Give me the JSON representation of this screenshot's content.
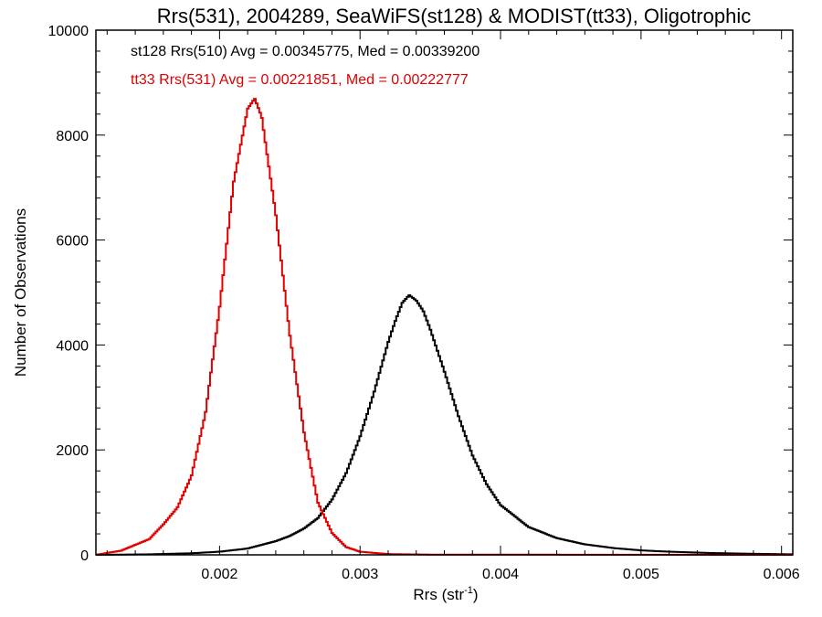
{
  "chart_data": {
    "type": "line",
    "title": "Rrs(531), 2004289, SeaWiFS(st128) & MODIST(tt33), Oligotrophic",
    "xlabel": "Rrs (str",
    "xlabel_sup": "-1",
    "xlabel_end": ")",
    "ylabel": "Number of Observations",
    "xlim": [
      0.00112,
      0.00608
    ],
    "ylim": [
      0,
      10000
    ],
    "x_ticks": [
      0.002,
      0.003,
      0.004,
      0.005,
      0.006
    ],
    "x_tick_labels": [
      "0.002",
      "0.003",
      "0.004",
      "0.005",
      "0.006"
    ],
    "y_ticks": [
      0,
      2000,
      4000,
      6000,
      8000,
      10000
    ],
    "y_tick_labels": [
      "0",
      "2000",
      "4000",
      "6000",
      "8000",
      "10000"
    ],
    "grid": false,
    "step": true,
    "annotations": [
      {
        "text": "st128 Rrs(510) Avg = 0.00345775, Med = 0.00339200",
        "color": "#000000"
      },
      {
        "text": "tt33 Rrs(531) Avg = 0.00221851, Med = 0.00222777",
        "color": "#e00000"
      }
    ],
    "series": [
      {
        "color": "#000000",
        "x": [
          0.00112,
          0.0015,
          0.0018,
          0.002,
          0.0022,
          0.0024,
          0.0025,
          0.0026,
          0.0027,
          0.0028,
          0.0029,
          0.003,
          0.0031,
          0.0032,
          0.00325,
          0.0033,
          0.00335,
          0.0034,
          0.00345,
          0.0035,
          0.0036,
          0.0037,
          0.0038,
          0.0039,
          0.004,
          0.0042,
          0.0044,
          0.0046,
          0.0048,
          0.005,
          0.0052,
          0.0055,
          0.0058,
          0.00608
        ],
        "y": [
          0,
          10,
          30,
          60,
          120,
          260,
          360,
          500,
          700,
          1050,
          1550,
          2250,
          3100,
          4050,
          4450,
          4800,
          4950,
          4850,
          4650,
          4300,
          3500,
          2650,
          1900,
          1350,
          950,
          530,
          320,
          200,
          130,
          85,
          60,
          35,
          20,
          10
        ]
      },
      {
        "color": "#e00000",
        "x": [
          0.00112,
          0.0013,
          0.0015,
          0.0016,
          0.0017,
          0.0018,
          0.0019,
          0.002,
          0.0021,
          0.0022,
          0.00225,
          0.0023,
          0.0024,
          0.0025,
          0.0026,
          0.0027,
          0.0028,
          0.0029,
          0.003,
          0.0032,
          0.0035,
          0.00608
        ],
        "y": [
          0,
          80,
          300,
          580,
          900,
          1500,
          2700,
          4700,
          7100,
          8500,
          8700,
          8350,
          6500,
          4200,
          2350,
          1000,
          420,
          150,
          60,
          15,
          5,
          0
        ]
      }
    ]
  }
}
